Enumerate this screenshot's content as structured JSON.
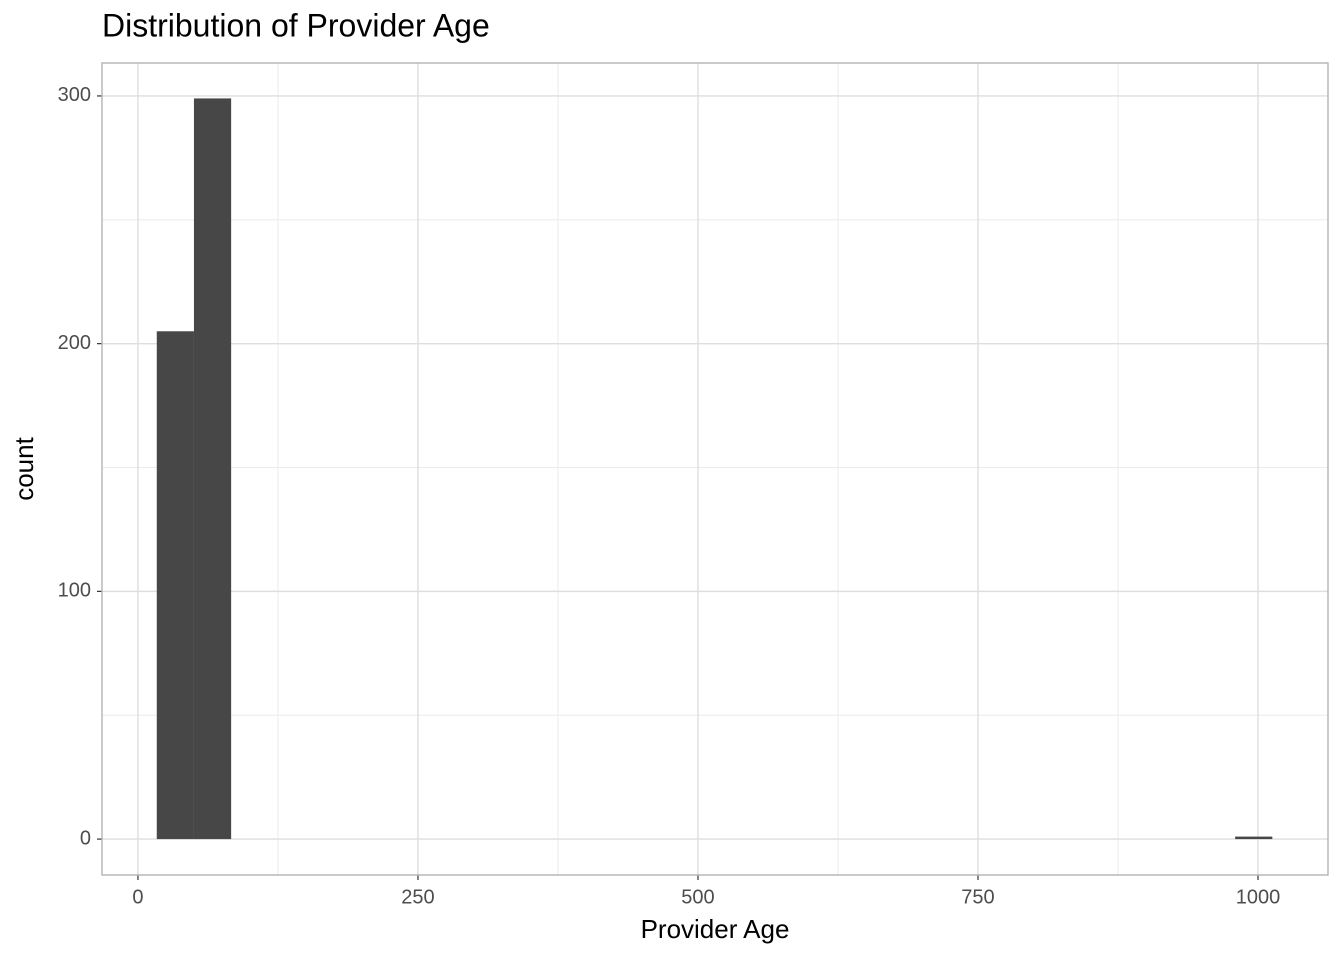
{
  "chart_data": {
    "type": "histogram",
    "title": "Distribution of Provider Age",
    "x_label": "Provider Age",
    "y_label": "count",
    "bins": [
      16.8,
      50,
      83.2,
      116.4,
      149.6,
      182.8,
      216,
      249.2,
      282.4,
      315.6,
      348.8,
      382,
      415.2,
      448.4,
      481.6,
      514.8,
      548,
      581.2,
      614.4,
      647.6,
      680.8,
      714,
      747.2,
      780.4,
      813.6,
      846.8,
      880,
      913.2,
      946.4,
      979.6,
      1012.8
    ],
    "values": [
      205,
      299,
      0,
      0,
      0,
      0,
      0,
      0,
      0,
      0,
      0,
      0,
      0,
      0,
      0,
      0,
      0,
      0,
      0,
      0,
      0,
      0,
      0,
      0,
      0,
      0,
      0,
      0,
      0,
      1
    ],
    "color": "#474747",
    "xlim": [
      -32.1,
      1062.5
    ],
    "xticks": [
      0,
      250,
      500,
      750,
      1000
    ],
    "xminor": [
      125,
      375,
      625,
      875
    ],
    "ylim": [
      -14.5,
      313.3
    ],
    "yticks": [
      0,
      100,
      200,
      300
    ],
    "yminor": [
      50,
      150,
      250
    ],
    "grid": true
  }
}
